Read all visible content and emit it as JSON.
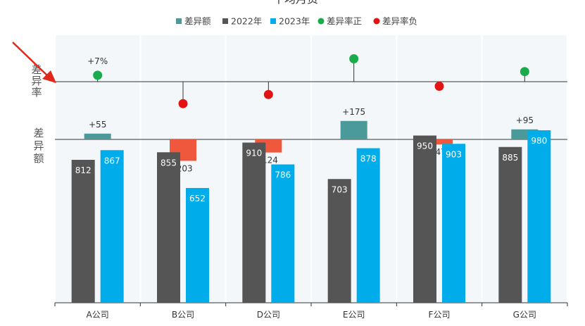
{
  "chart_data": {
    "type": "bar",
    "title": "平均月资",
    "categories": [
      "A公司",
      "B公司",
      "D公司",
      "E公司",
      "F公司",
      "G公司"
    ],
    "series": [
      {
        "name": "2022年",
        "values": [
          812,
          855,
          910,
          703,
          950,
          885
        ]
      },
      {
        "name": "2023年",
        "values": [
          867,
          652,
          786,
          878,
          903,
          980
        ]
      }
    ],
    "difference": {
      "name": "差异额",
      "values": [
        55,
        -203,
        -124,
        175,
        -47,
        95
      ],
      "labels": [
        "+55",
        "-203",
        "-124",
        "+175",
        "-47",
        "+95"
      ]
    },
    "difference_rate": {
      "positive_name": "差异率正",
      "negative_name": "差异率负",
      "values": [
        7,
        -24,
        -14,
        25,
        -5,
        11
      ],
      "labels": [
        "+7%",
        "",
        "",
        "",
        "",
        ""
      ]
    },
    "side_labels": {
      "rate": "差异率",
      "amount": "差异额"
    },
    "legend_position": "top",
    "colors": {
      "diff_positive": "#4a9a99",
      "diff_negative": "#f0583d",
      "y2022": "#555555",
      "y2023": "#00adea",
      "rate_positive": "#1aab4c",
      "rate_negative": "#e41313",
      "panel_bg": "#f3f7fa",
      "arrow": "#e0281c"
    }
  }
}
